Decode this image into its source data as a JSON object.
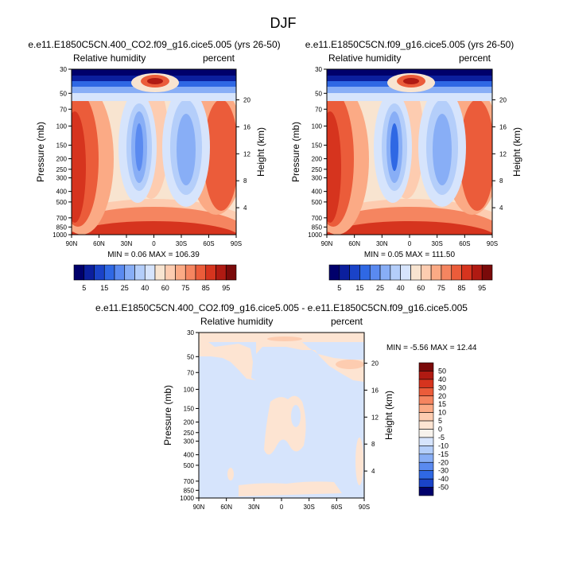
{
  "page_title": "DJF",
  "chart_data": [
    {
      "type": "heatmap",
      "title": "e.e11.E1850C5CN.400_CO2.f09_g16.cice5.005 (yrs 26-50)",
      "subtitle_left": "Relative humidity",
      "subtitle_right": "percent",
      "ylabel": "Pressure (mb)",
      "ylabel_right": "Height (km)",
      "x_ticks": [
        "90N",
        "60N",
        "30N",
        "0",
        "30S",
        "60S",
        "90S"
      ],
      "y_ticks": [
        "30",
        "50",
        "70",
        "100",
        "150",
        "200",
        "250",
        "300",
        "400",
        "500",
        "700",
        "850",
        "1000"
      ],
      "y_ticks_right": [
        "20",
        "16",
        "12",
        "8",
        "4"
      ],
      "stats": "MIN =  0.06  MAX = 106.39"
    },
    {
      "type": "heatmap",
      "title": "e.e11.E1850C5CN.f09_g16.cice5.005 (yrs 26-50)",
      "subtitle_left": "Relative humidity",
      "subtitle_right": "percent",
      "ylabel": "Pressure (mb)",
      "ylabel_right": "Height (km)",
      "x_ticks": [
        "90N",
        "60N",
        "30N",
        "0",
        "30S",
        "60S",
        "90S"
      ],
      "y_ticks": [
        "30",
        "50",
        "70",
        "100",
        "150",
        "200",
        "250",
        "300",
        "400",
        "500",
        "700",
        "850",
        "1000"
      ],
      "y_ticks_right": [
        "20",
        "16",
        "12",
        "8",
        "4"
      ],
      "stats": "MIN =  0.05  MAX = 111.50"
    },
    {
      "type": "heatmap",
      "title": "e.e11.E1850C5CN.400_CO2.f09_g16.cice5.005 - e.e11.E1850C5CN.f09_g16.cice5.005",
      "subtitle_left": "Relative humidity",
      "subtitle_right": "percent",
      "ylabel": "Pressure (mb)",
      "ylabel_right": "Height (km)",
      "x_ticks": [
        "90N",
        "60N",
        "30N",
        "0",
        "30S",
        "60S",
        "90S"
      ],
      "y_ticks": [
        "30",
        "50",
        "70",
        "100",
        "150",
        "200",
        "250",
        "300",
        "400",
        "500",
        "700",
        "850",
        "1000"
      ],
      "y_ticks_right": [
        "20",
        "16",
        "12",
        "8",
        "4"
      ],
      "stats": "MIN = -5.56  MAX = 12.44"
    }
  ],
  "colorbar_main": {
    "labels": [
      "5",
      "15",
      "25",
      "40",
      "60",
      "75",
      "85",
      "95"
    ],
    "colors": [
      "#00006b",
      "#0b1f9e",
      "#1a43c8",
      "#2f68e4",
      "#5a8af0",
      "#88aef6",
      "#b4cefa",
      "#d6e4fc",
      "#f8e4d0",
      "#fdccb0",
      "#fbaa85",
      "#f58560",
      "#eb5c3a",
      "#d6341e",
      "#b01a12",
      "#7a0a0a"
    ]
  },
  "colorbar_diff": {
    "labels": [
      "50",
      "40",
      "30",
      "20",
      "15",
      "10",
      "5",
      "0",
      "-5",
      "-10",
      "-15",
      "-20",
      "-30",
      "-40",
      "-50"
    ],
    "colors": [
      "#7a0a0a",
      "#b01a12",
      "#d6341e",
      "#eb5c3a",
      "#f58560",
      "#fbaa85",
      "#fdccb0",
      "#fde4d2",
      "#f7f2ec",
      "#d6e4fc",
      "#b4cefa",
      "#88aef6",
      "#5a8af0",
      "#2f68e4",
      "#1a43c8",
      "#00006b"
    ]
  }
}
